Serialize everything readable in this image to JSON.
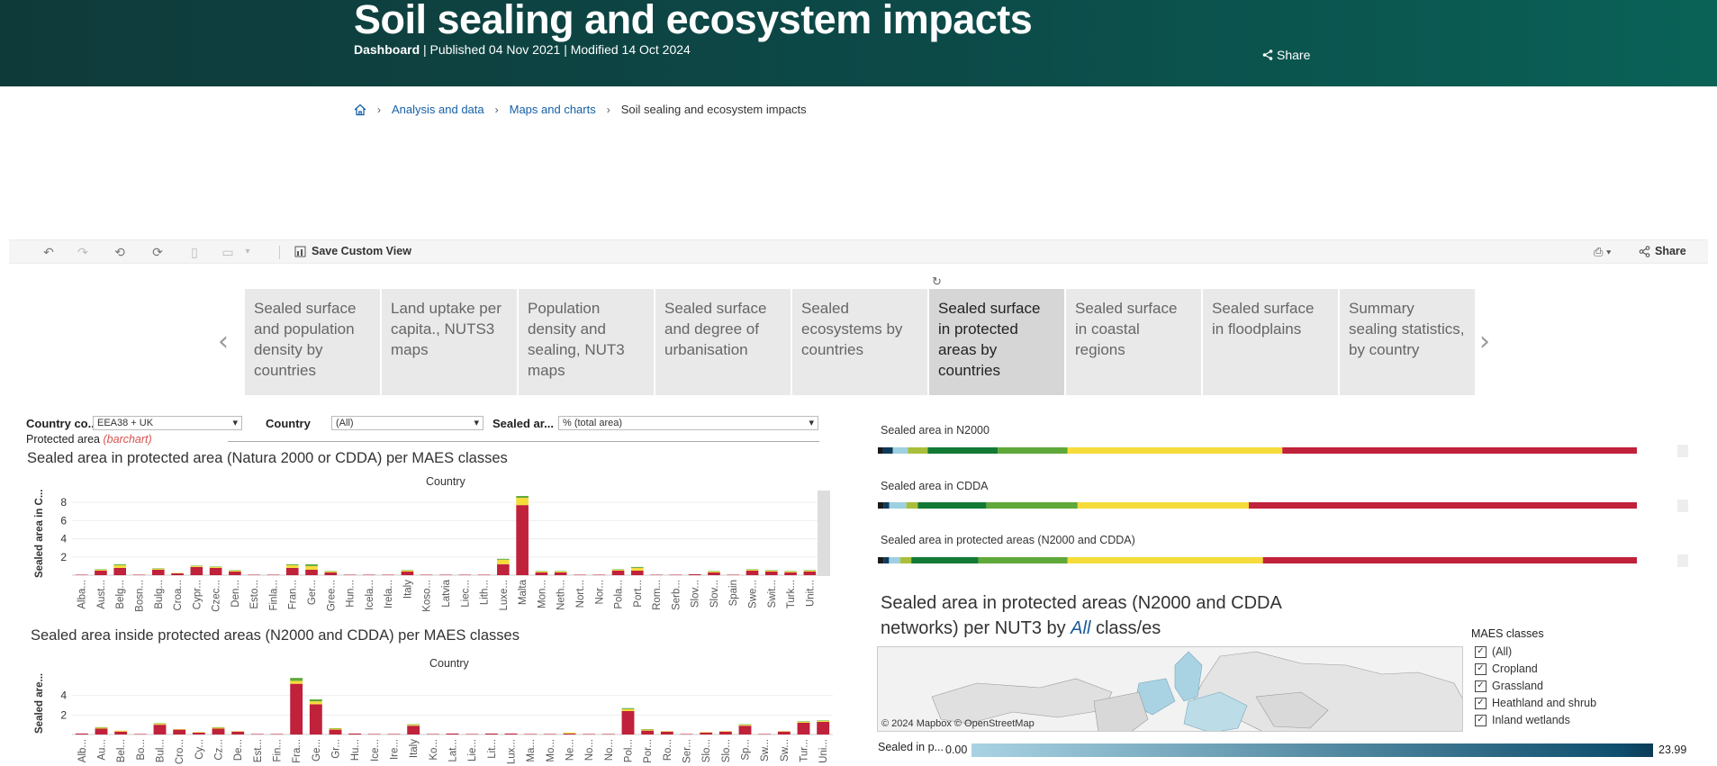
{
  "header": {
    "title": "Soil sealing and ecosystem impacts",
    "meta_bold": "Dashboard",
    "meta_rest": " | Published 04 Nov 2021 | Modified 14 Oct 2024",
    "share_label": "Share"
  },
  "breadcrumb": {
    "items": [
      "Analysis and data",
      "Maps and charts"
    ],
    "current": "Soil sealing and ecosystem impacts"
  },
  "toolbar": {
    "save_label": "Save Custom View",
    "share_label": "Share"
  },
  "tabs": [
    "Sealed surface and population density by countries",
    "Land uptake per capita., NUTS3 maps",
    "Population density and sealing, NUT3 maps",
    "Sealed surface and degree of urbanisation",
    "Sealed ecosystems by countries",
    "Sealed surface in protected areas by countries",
    "Sealed surface in coastal regions",
    "Sealed surface in floodplains",
    "Summary sealing statistics, by country"
  ],
  "active_tab": 5,
  "filters": {
    "country_code_label": "Country co...",
    "country_code_value": "EEA38 + UK",
    "country_label": "Country",
    "country_value": "(All)",
    "sealed_label": "Sealed ar...",
    "sealed_value": "% (total area)",
    "protected_label": "Protected area",
    "protected_hint": "(barchart)"
  },
  "chart1": {
    "title": "Sealed area in protected area (Natura 2000 or CDDA)  per MAES classes",
    "header": "Country",
    "ylabel": "Sealed area in C..."
  },
  "chart2": {
    "title": "Sealed area inside protected areas (N2000 and CDDA) per MAES classes",
    "header": "Country",
    "ylabel": "Sealed are..."
  },
  "hbars": {
    "n2000": "Sealed area in N2000",
    "cdda": "Sealed area in CDDA",
    "both": "Sealed area in protected areas (N2000 and CDDA)"
  },
  "map": {
    "title_pre": "Sealed area in protected areas (N2000 and CDDA networks) per NUT3 by ",
    "title_em": "All",
    "title_post": " class/es",
    "credit": "© 2024 Mapbox  © OpenStreetMap",
    "maes_title": "MAES classes",
    "maes_items": [
      "(All)",
      "Cropland",
      "Grassland",
      "Heathland and shrub",
      "Inland wetlands"
    ],
    "legend_label": "Sealed in p...",
    "legend_min": "0.00",
    "legend_max": "23.99"
  },
  "colors": {
    "banner": "#0f3a3a",
    "red": "#c0213b",
    "yellow": "#f5dc3b",
    "lightgreen": "#5fa83a",
    "darkgreen": "#137a36",
    "link": "#1560a8"
  },
  "chart_data": [
    {
      "type": "bar",
      "title": "Sealed area in protected area (Natura 2000 or CDDA)  per MAES classes",
      "xlabel": "Country",
      "ylabel": "Sealed area in C...",
      "ylim": [
        0,
        9
      ],
      "yticks": [
        2,
        4,
        6,
        8
      ],
      "categories": [
        "Alba...",
        "Aust...",
        "Belg...",
        "Bosn...",
        "Bulg...",
        "Croa...",
        "Cypr...",
        "Czec...",
        "Den...",
        "Esto...",
        "Finla...",
        "Fran...",
        "Ger...",
        "Gree...",
        "Hun...",
        "Icela...",
        "Irela...",
        "Italy",
        "Koso...",
        "Latvia",
        "Liec...",
        "Lith...",
        "Luxe...",
        "Malta",
        "Mon...",
        "Neth...",
        "Nort...",
        "Nor...",
        "Pola...",
        "Port...",
        "Rom...",
        "Serb...",
        "Slov...",
        "Slov...",
        "Spain",
        "Swe...",
        "Swit...",
        "Turk...",
        "Unit..."
      ],
      "series": [
        {
          "values": [
            0.05,
            0.5,
            0.8,
            0.05,
            0.6,
            0.2,
            0.9,
            0.8,
            0.4,
            0.05,
            0.05,
            0.8,
            0.6,
            0.3,
            0.05,
            0.05,
            0.05,
            0.4,
            0.05,
            0.05,
            0.05,
            0.05,
            1.2,
            7.7,
            0.3,
            0.3,
            0.05,
            0.05,
            0.5,
            0.5,
            0.05,
            0.05,
            0.1,
            0.3,
            0.05,
            0.5,
            0.4,
            0.3,
            0.4
          ]
        },
        {
          "values": [
            0,
            0.1,
            0.3,
            0,
            0.1,
            0.05,
            0.1,
            0.1,
            0.1,
            0,
            0,
            0.3,
            0.4,
            0.1,
            0,
            0,
            0,
            0.1,
            0,
            0,
            0,
            0,
            0.5,
            0.8,
            0.1,
            0.1,
            0,
            0,
            0.1,
            0.3,
            0,
            0,
            0,
            0.1,
            0,
            0.1,
            0.1,
            0.1,
            0.1
          ]
        },
        {
          "values": [
            0,
            0.05,
            0.1,
            0,
            0.05,
            0,
            0.05,
            0.05,
            0.05,
            0,
            0,
            0.1,
            0.2,
            0.05,
            0,
            0,
            0,
            0.05,
            0,
            0,
            0,
            0,
            0.1,
            0.2,
            0.05,
            0.05,
            0,
            0,
            0.05,
            0.1,
            0,
            0,
            0,
            0.05,
            0,
            0.05,
            0.05,
            0.05,
            0.05
          ]
        }
      ]
    },
    {
      "type": "bar",
      "title": "Sealed area inside protected areas (N2000 and CDDA) per MAES classes",
      "xlabel": "Country",
      "ylabel": "Sealed are...",
      "ylim": [
        0,
        6
      ],
      "yticks": [
        2,
        4
      ],
      "categories": [
        "Alb...",
        "Au...",
        "Bel...",
        "Bo...",
        "Bul...",
        "Cro...",
        "Cy...",
        "Cz...",
        "De...",
        "Est...",
        "Fin...",
        "Fra...",
        "Ge...",
        "Gr...",
        "Hu...",
        "Ice...",
        "Ire...",
        "Italy",
        "Ko...",
        "Lat...",
        "Lie...",
        "Lit...",
        "Lux...",
        "Ma...",
        "Mo...",
        "Ne...",
        "No...",
        "No...",
        "Pol...",
        "Por...",
        "Ro...",
        "Ser...",
        "Slo...",
        "Slo...",
        "Sp...",
        "Sw...",
        "Sw...",
        "Tur...",
        "Uni..."
      ],
      "series": [
        {
          "values": [
            0.1,
            0.6,
            0.3,
            0.05,
            1.0,
            0.5,
            0.2,
            0.6,
            0.3,
            0.05,
            0.05,
            5.2,
            3.1,
            0.5,
            0.1,
            0.05,
            0.05,
            0.9,
            0.05,
            0.1,
            0.05,
            0.1,
            0.1,
            0.05,
            0.05,
            0.1,
            0.05,
            0.05,
            2.4,
            0.4,
            0.3,
            0.05,
            0.2,
            0.3,
            0.9,
            0.05,
            0.3,
            1.2,
            1.3
          ]
        },
        {
          "values": [
            0,
            0.1,
            0.1,
            0,
            0.1,
            0.05,
            0.05,
            0.1,
            0.05,
            0,
            0,
            0.3,
            0.3,
            0.1,
            0,
            0,
            0,
            0.1,
            0,
            0,
            0,
            0,
            0,
            0,
            0,
            0.1,
            0,
            0,
            0.2,
            0.1,
            0.05,
            0,
            0.05,
            0.05,
            0.1,
            0,
            0.05,
            0.1,
            0.1
          ]
        },
        {
          "values": [
            0,
            0.05,
            0,
            0,
            0.05,
            0,
            0,
            0.05,
            0,
            0,
            0,
            0.3,
            0.2,
            0.05,
            0,
            0,
            0,
            0.05,
            0,
            0,
            0,
            0,
            0,
            0,
            0,
            0,
            0,
            0,
            0.1,
            0.05,
            0,
            0,
            0,
            0,
            0.05,
            0,
            0,
            0.05,
            0.05
          ]
        }
      ]
    },
    {
      "type": "bar",
      "title": "Sealed area in N2000",
      "orientation": "horizontal-stacked",
      "segments": [
        {
          "color": "#1a1a1a",
          "value": 1
        },
        {
          "color": "#0e3b5b",
          "value": 2
        },
        {
          "color": "#9dd0e0",
          "value": 3
        },
        {
          "color": "#a9bf3b",
          "value": 4
        },
        {
          "color": "#137a36",
          "value": 14
        },
        {
          "color": "#5fa83a",
          "value": 14
        },
        {
          "color": "#f5dc3b",
          "value": 43
        },
        {
          "color": "#c0213b",
          "value": 71
        }
      ]
    },
    {
      "type": "bar",
      "title": "Sealed area in CDDA",
      "orientation": "horizontal-stacked",
      "segments": [
        {
          "color": "#1a1a1a",
          "value": 1
        },
        {
          "color": "#0e3b5b",
          "value": 1
        },
        {
          "color": "#9dd0e0",
          "value": 3
        },
        {
          "color": "#a9bf3b",
          "value": 2
        },
        {
          "color": "#137a36",
          "value": 12
        },
        {
          "color": "#5fa83a",
          "value": 16
        },
        {
          "color": "#f5dc3b",
          "value": 30
        },
        {
          "color": "#c0213b",
          "value": 68
        }
      ]
    },
    {
      "type": "bar",
      "title": "Sealed area in protected areas (N2000 and CDDA)",
      "orientation": "horizontal-stacked",
      "segments": [
        {
          "color": "#1a1a1a",
          "value": 1
        },
        {
          "color": "#0e3b5b",
          "value": 1
        },
        {
          "color": "#9dd0e0",
          "value": 2
        },
        {
          "color": "#a9bf3b",
          "value": 2
        },
        {
          "color": "#137a36",
          "value": 12
        },
        {
          "color": "#5fa83a",
          "value": 16
        },
        {
          "color": "#f5dc3b",
          "value": 35
        },
        {
          "color": "#c0213b",
          "value": 67
        }
      ]
    }
  ]
}
